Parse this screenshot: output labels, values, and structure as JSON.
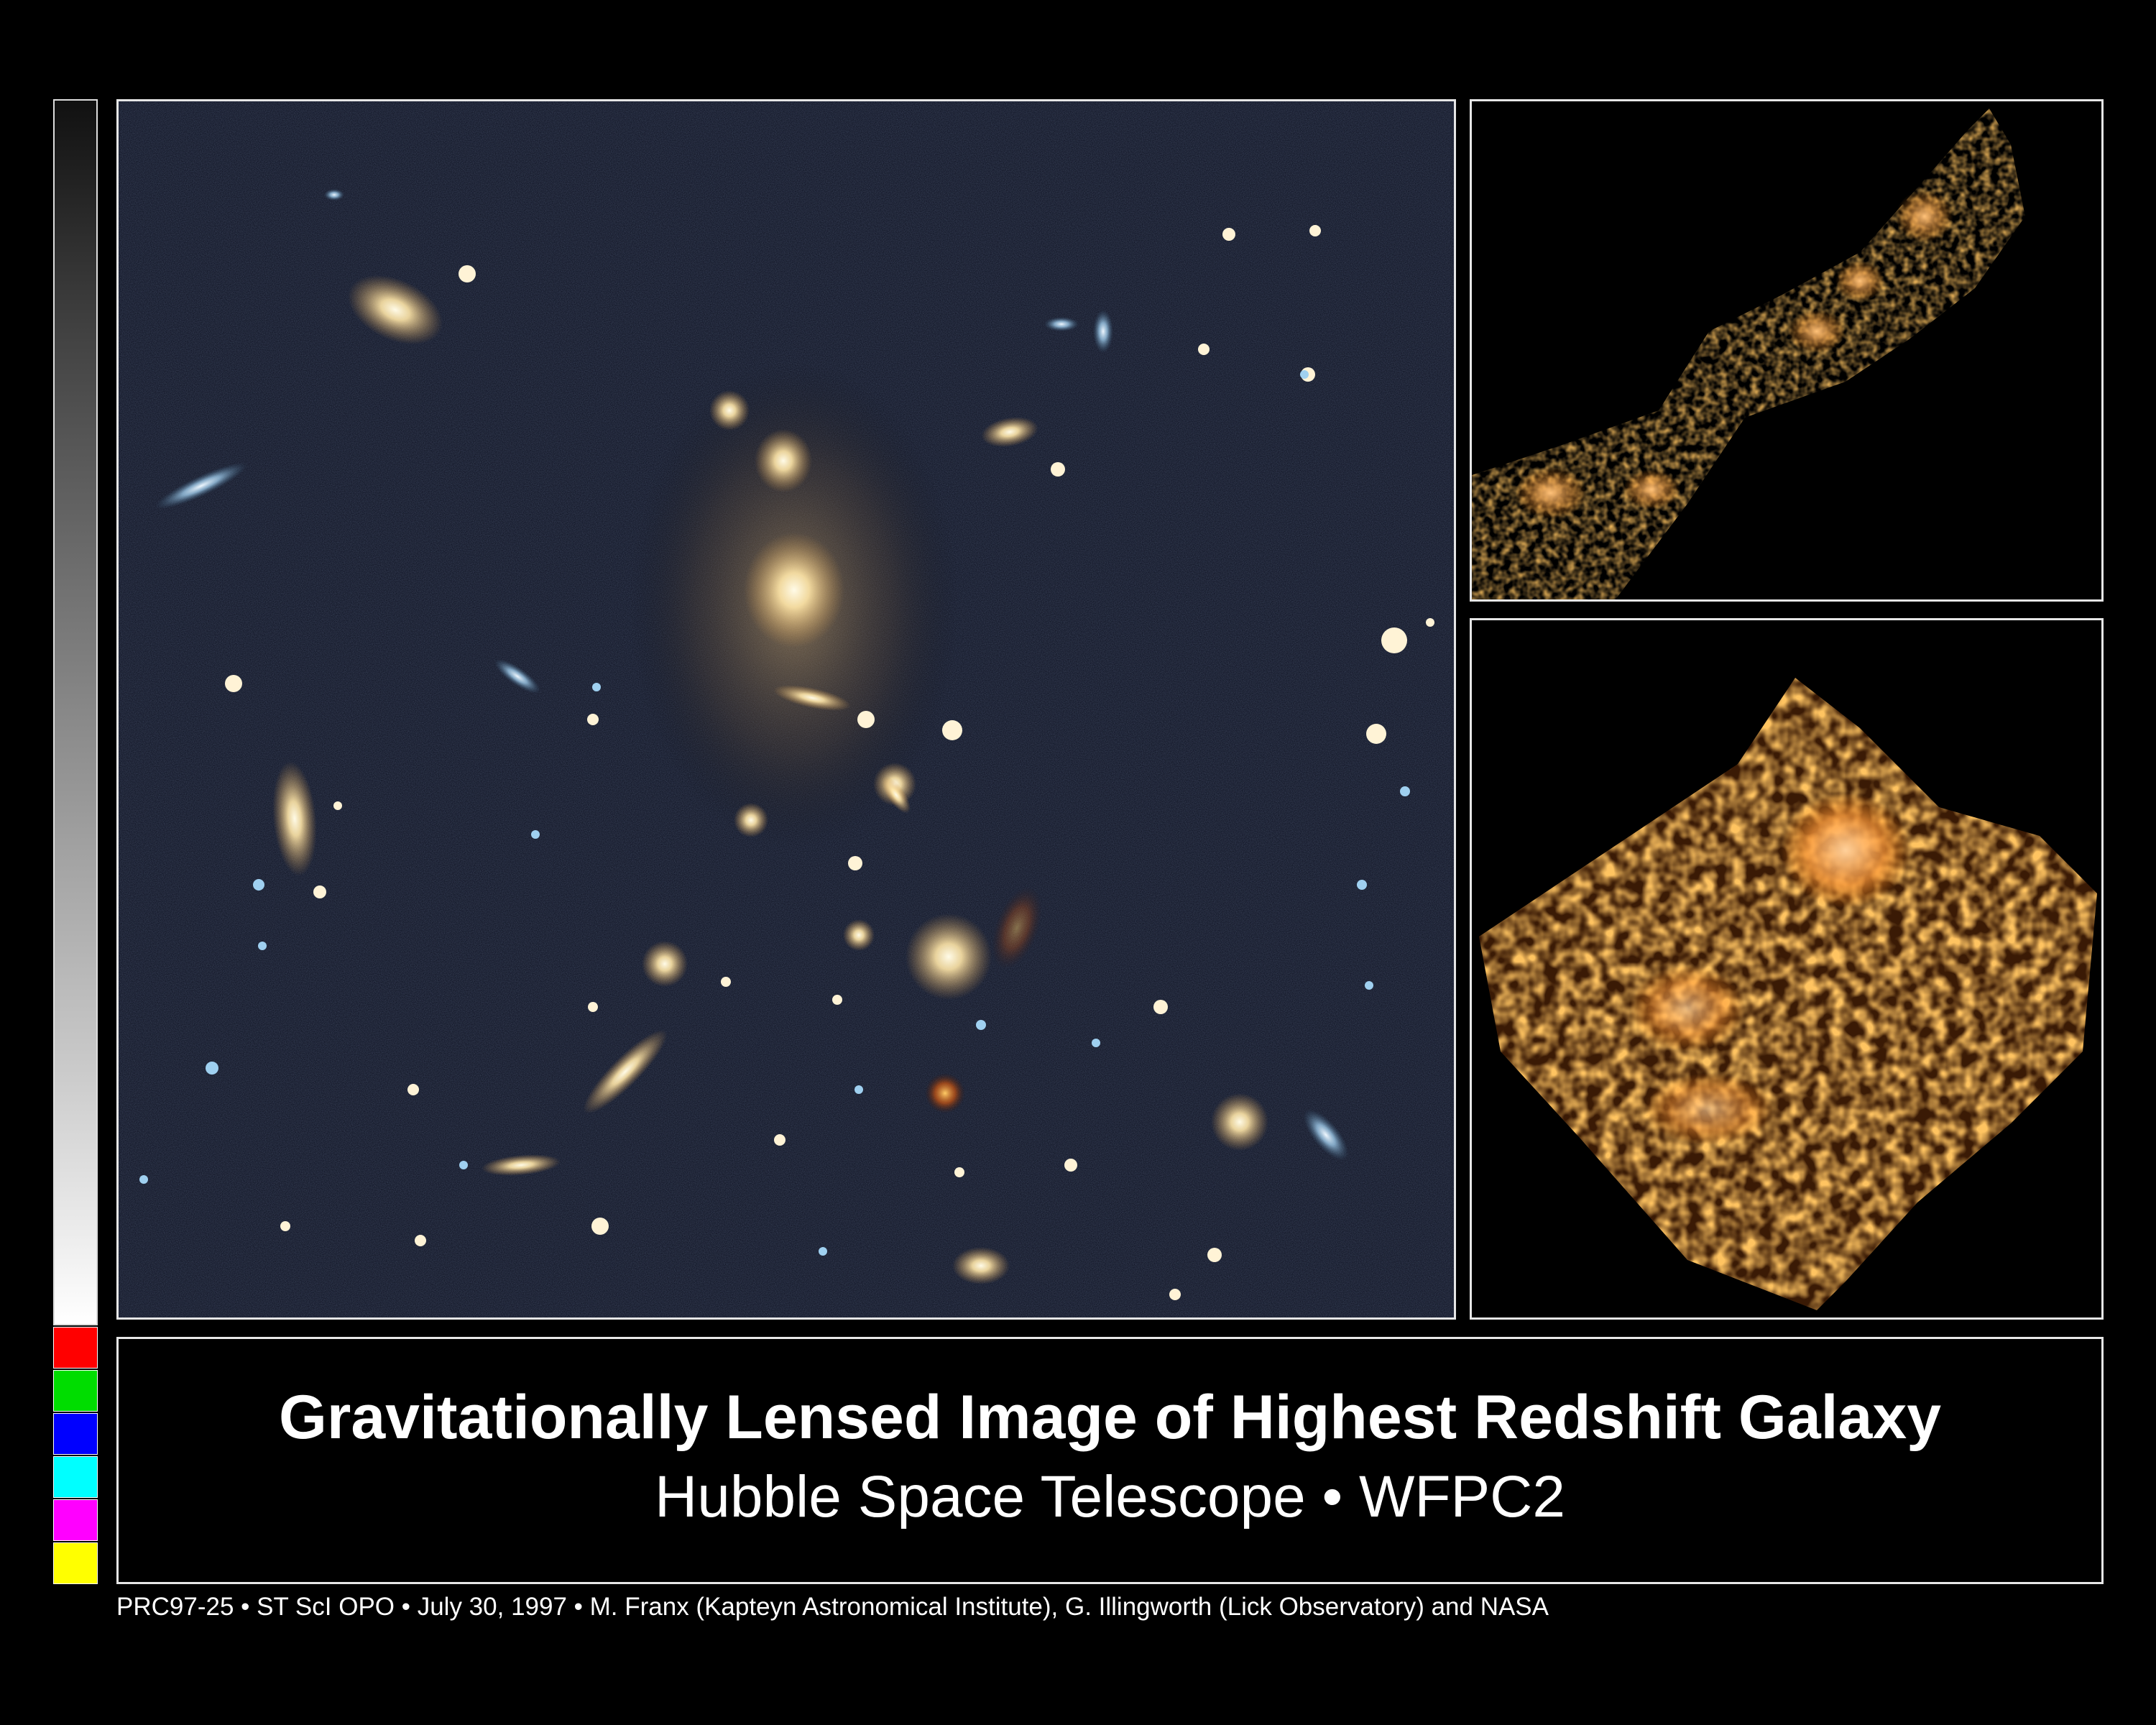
{
  "title": "Gravitationally Lensed Image of Highest Redshift Galaxy",
  "subtitle": "Hubble Space Telescope • WFPC2",
  "credit": "PRC97-25 • ST ScI OPO • July 30, 1997 • M. Franx (Kapteyn Astronomical Institute), G. Illingworth (Lick Observatory)  and NASA",
  "scale_bar": {
    "swatch_colors": [
      "#ff0000",
      "#00dd00",
      "#0000ff",
      "#00ffff",
      "#ff00ff",
      "#ffff00"
    ]
  },
  "colors": {
    "background": "#000000",
    "frame": "#e6e6e6",
    "galaxy_glow": "#ffe8b0",
    "lensed_orange": "#ff8c1a"
  }
}
